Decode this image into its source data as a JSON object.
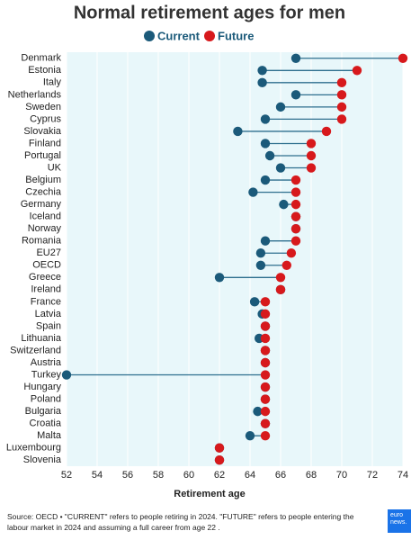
{
  "chart_data": {
    "type": "dumbbell",
    "title": "Normal retirement ages for men",
    "categories": [
      "Denmark",
      "Estonia",
      "Italy",
      "Netherlands",
      "Sweden",
      "Cyprus",
      "Slovakia",
      "Finland",
      "Portugal",
      "UK",
      "Belgium",
      "Czechia",
      "Germany",
      "Iceland",
      "Norway",
      "Romania",
      "EU27",
      "OECD",
      "Greece",
      "Ireland",
      "France",
      "Latvia",
      "Spain",
      "Lithuania",
      "Switzerland",
      "Austria",
      "Turkey",
      "Hungary",
      "Poland",
      "Bulgaria",
      "Croatia",
      "Malta",
      "Luxembourg",
      "Slovenia"
    ],
    "series": [
      {
        "name": "Current",
        "color": "#1b5a7a",
        "values": [
          67,
          64.8,
          64.8,
          67,
          66,
          65,
          63.2,
          65,
          65.3,
          66,
          65,
          64.2,
          66.2,
          67,
          67,
          65,
          64.7,
          64.7,
          62,
          66,
          64.3,
          64.8,
          65,
          64.6,
          65,
          65,
          52,
          65,
          65,
          64.5,
          65,
          64,
          62,
          62
        ]
      },
      {
        "name": "Future",
        "color": "#d7191c",
        "values": [
          74,
          71,
          70,
          70,
          70,
          70,
          69,
          68,
          68,
          68,
          67,
          67,
          67,
          67,
          67,
          67,
          66.7,
          66.4,
          66,
          66,
          65,
          65,
          65,
          65,
          65,
          65,
          65,
          65,
          65,
          65,
          65,
          65,
          62,
          62
        ]
      }
    ],
    "xlim": [
      52,
      74
    ],
    "xticks": [
      52,
      54,
      56,
      58,
      60,
      62,
      64,
      66,
      68,
      70,
      72,
      74
    ],
    "grid": true,
    "xlabel": "Retirement age",
    "source": "Source: OECD • \"CURRENT\" refers to people retiring in 2024. \"FUTURE\" refers to people entering the labour market in 2024 and assuming a full career from age 22 .",
    "logo": "euro news."
  }
}
